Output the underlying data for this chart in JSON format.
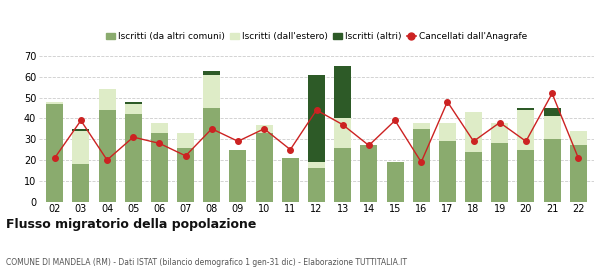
{
  "years": [
    "02",
    "03",
    "04",
    "05",
    "06",
    "07",
    "08",
    "09",
    "10",
    "11",
    "12",
    "13",
    "14",
    "15",
    "16",
    "17",
    "18",
    "19",
    "20",
    "21",
    "22"
  ],
  "iscritti_altri_comuni": [
    47,
    18,
    44,
    42,
    33,
    26,
    45,
    25,
    33,
    21,
    16,
    26,
    27,
    19,
    35,
    29,
    24,
    28,
    25,
    30,
    27
  ],
  "iscritti_estero": [
    1,
    16,
    10,
    5,
    5,
    7,
    16,
    0,
    4,
    0,
    3,
    14,
    0,
    0,
    3,
    9,
    19,
    10,
    19,
    11,
    7
  ],
  "iscritti_altri": [
    0,
    1,
    0,
    1,
    0,
    0,
    2,
    0,
    0,
    0,
    42,
    25,
    0,
    0,
    0,
    0,
    0,
    0,
    1,
    4,
    0
  ],
  "cancellati": [
    21,
    39,
    20,
    31,
    28,
    22,
    35,
    29,
    35,
    25,
    44,
    37,
    27,
    39,
    19,
    48,
    29,
    38,
    29,
    52,
    21
  ],
  "color_altri_comuni": "#8aab6e",
  "color_estero": "#deecc7",
  "color_altri": "#2d5a27",
  "color_cancellati": "#cc2222",
  "title": "Flusso migratorio della popolazione",
  "subtitle": "COMUNE DI MANDELA (RM) - Dati ISTAT (bilancio demografico 1 gen-31 dic) - Elaborazione TUTTITALIA.IT",
  "legend_labels": [
    "Iscritti (da altri comuni)",
    "Iscritti (dall'estero)",
    "Iscritti (altri)",
    "Cancellati dall'Anagrafe"
  ],
  "ylim": [
    0,
    70
  ],
  "yticks": [
    0,
    10,
    20,
    30,
    40,
    50,
    60,
    70
  ]
}
